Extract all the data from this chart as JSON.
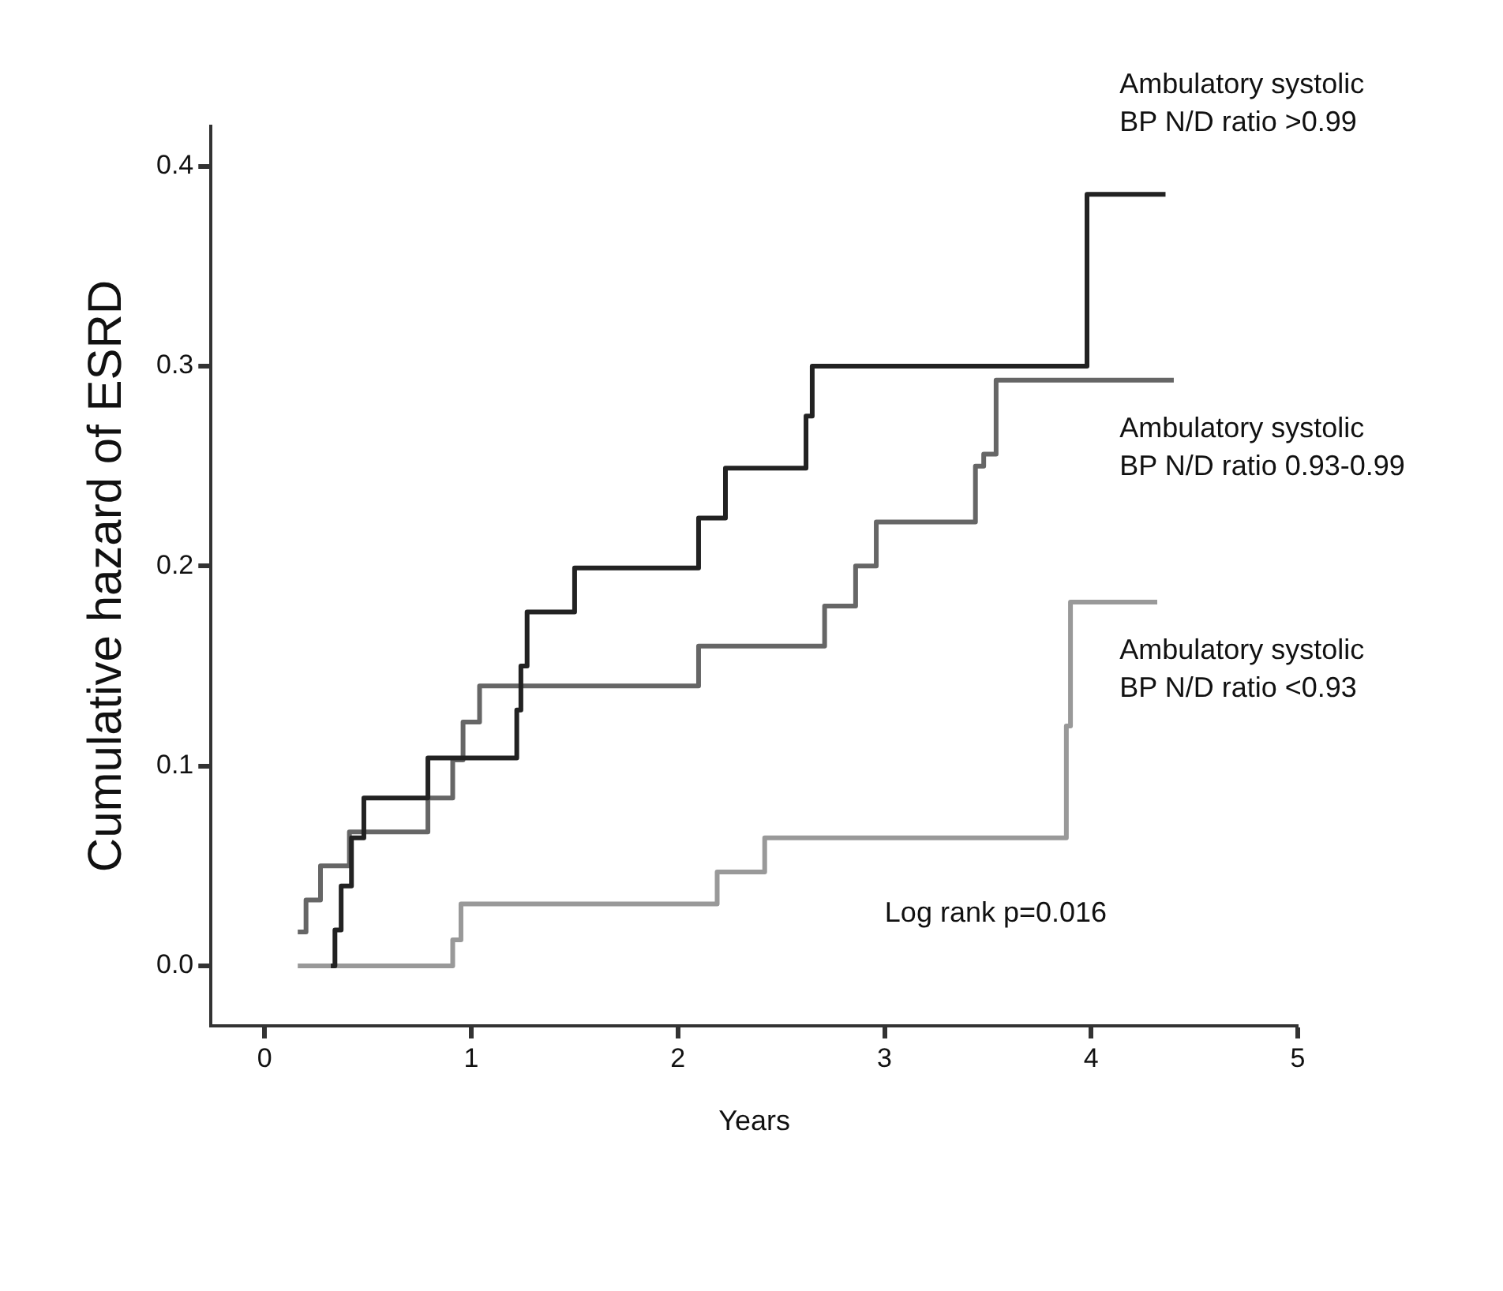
{
  "chart_data": {
    "type": "step",
    "xlabel": "Years",
    "ylabel": "Cumulative hazard of ESRD",
    "xlim": [
      -0.26,
      5
    ],
    "xticks": [
      0,
      1,
      2,
      3,
      4,
      5
    ],
    "ylim": [
      -0.03,
      0.42
    ],
    "yticks": [
      {
        "value": 0,
        "label": "0.0"
      },
      {
        "value": 0.1,
        "label": "0.1"
      },
      {
        "value": 0.2,
        "label": "0.2"
      },
      {
        "value": 0.3,
        "label": "0.3"
      },
      {
        "value": 0.4,
        "label": "0.4"
      }
    ],
    "grid": false,
    "legend": false,
    "series": [
      {
        "name": "Ambulatory systolic BP N/D ratio >0.99",
        "color": "#222222",
        "x": [
          0.32,
          0.34,
          0.37,
          0.42,
          0.48,
          0.79,
          1.22,
          1.24,
          1.27,
          1.5,
          2.1,
          2.23,
          2.62,
          2.65,
          3.98,
          4.36
        ],
        "values": [
          0,
          0.018,
          0.04,
          0.064,
          0.084,
          0.104,
          0.128,
          0.15,
          0.177,
          0.199,
          0.224,
          0.249,
          0.275,
          0.3,
          0.386,
          0.386
        ]
      },
      {
        "name": "Ambulatory systolic BP N/D ratio 0.93-0.99",
        "color": "#666666",
        "x": [
          0.16,
          0.2,
          0.27,
          0.41,
          0.79,
          0.91,
          0.96,
          1.04,
          2.1,
          2.71,
          2.86,
          2.96,
          3.44,
          3.48,
          3.54,
          4.4
        ],
        "values": [
          0.017,
          0.033,
          0.05,
          0.067,
          0.084,
          0.103,
          0.122,
          0.14,
          0.16,
          0.18,
          0.2,
          0.222,
          0.25,
          0.256,
          0.293,
          0.293
        ]
      },
      {
        "name": "Ambulatory systolic BP N/D ratio <0.93",
        "color": "#999999",
        "x": [
          0.16,
          0.91,
          0.95,
          2.19,
          2.42,
          3.88,
          3.9,
          4.32
        ],
        "values": [
          0,
          0.013,
          0.031,
          0.047,
          0.064,
          0.12,
          0.182,
          0.182
        ]
      }
    ],
    "annotations": [
      "Log rank p=0.016"
    ]
  }
}
